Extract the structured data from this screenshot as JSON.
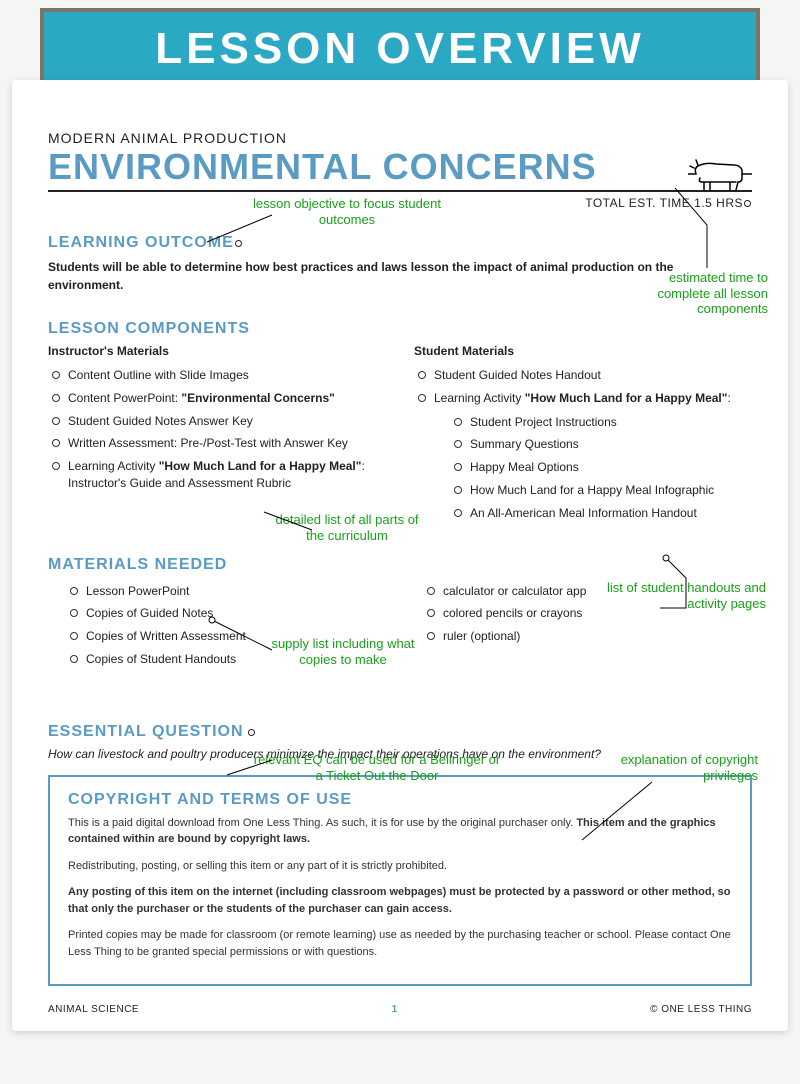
{
  "banner": "LESSON OVERVIEW",
  "subject": "MODERN ANIMAL PRODUCTION",
  "title": "ENVIRONMENTAL CONCERNS",
  "time_label": "TOTAL EST. TIME 1.5 HRS",
  "colors": {
    "banner_bg": "#2aa8c4",
    "banner_border": "#7a7565",
    "accent": "#5a9bc4",
    "callout": "#1aa01a"
  },
  "sections": {
    "learning_outcome": {
      "heading": "LEARNING OUTCOME",
      "text": "Students will be able to determine how best practices and laws lesson the impact of animal production on the environment."
    },
    "components": {
      "heading": "LESSON COMPONENTS",
      "instructor_heading": "Instructor's Materials",
      "instructor_items": [
        "Content Outline with Slide Images",
        "Content PowerPoint: \"Environmental Concerns\"",
        "Student Guided Notes Answer Key",
        "Written Assessment: Pre-/Post-Test with Answer Key",
        "Learning Activity \"How Much Land for a Happy Meal\": Instructor's Guide and Assessment Rubric"
      ],
      "student_heading": "Student Materials",
      "student_items": [
        "Student Guided Notes Handout",
        "Learning Activity \"How Much Land for a Happy Meal\":"
      ],
      "student_sub": [
        "Student Project Instructions",
        "Summary Questions",
        "Happy Meal Options",
        "How Much Land for a Happy Meal Infographic",
        "An All-American Meal Information Handout"
      ]
    },
    "materials": {
      "heading": "MATERIALS NEEDED",
      "left": [
        "Lesson PowerPoint",
        "Copies of Guided Notes",
        "Copies of Written Assessment",
        "Copies of Student Handouts"
      ],
      "right": [
        "calculator or calculator app",
        "colored pencils or crayons",
        "ruler (optional)"
      ]
    },
    "essential": {
      "heading": "ESSENTIAL QUESTION",
      "text": "How can livestock and poultry producers minimize the impact their operations have on the environment?"
    },
    "copyright": {
      "heading": "COPYRIGHT AND TERMS OF USE",
      "p1a": "This is a paid digital download from One Less Thing. As such, it is for use by the original purchaser only. ",
      "p1b": "This item and the graphics contained within are bound by copyright laws.",
      "p2": "Redistributing, posting, or selling this item or any part of it is strictly prohibited.",
      "p3": "Any posting of this item on the internet (including classroom webpages) must be protected by a password or other method, so that only the purchaser or the students of the purchaser can gain access.",
      "p4": "Printed copies may be made for classroom (or remote learning) use as needed by the purchasing teacher or school. Please contact One Less Thing to be granted special permissions or with questions."
    }
  },
  "callouts": {
    "objective": "lesson objective to focus student outcomes",
    "time": "estimated time to complete all lesson components",
    "curriculum": "detailed list of all parts of the curriculum",
    "handouts": "list of student handouts and activity pages",
    "supplies": "supply list including what copies to make",
    "eq": "relevant EQ can be used for a Bellringer or a Ticket Out the Door",
    "copyright": "explanation of copyright privileges"
  },
  "footer": {
    "left": "ANIMAL SCIENCE",
    "page": "1",
    "right": "© ONE LESS THING"
  }
}
